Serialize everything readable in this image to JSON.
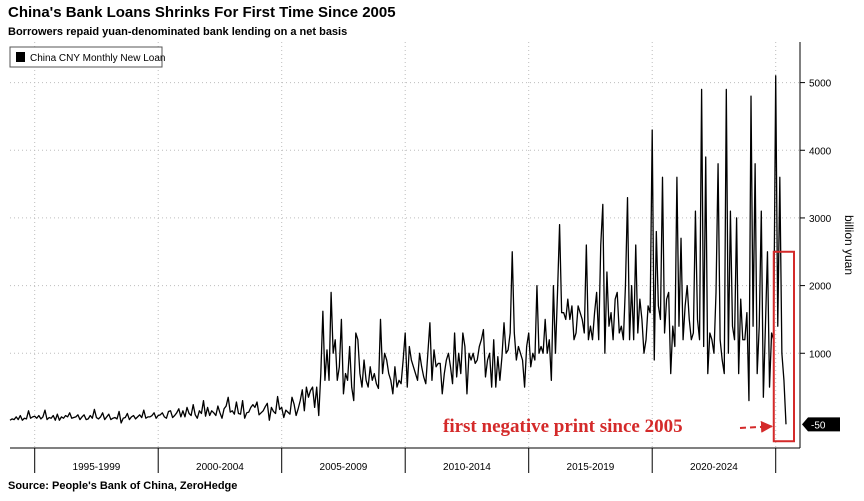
{
  "title": "China's Bank Loans Shrinks For First Time Since 2005",
  "subtitle": "Borrowers repaid yuan-denominated bank lending on a net basis",
  "source": "Source: People's Bank of China, ZeroHedge",
  "colors": {
    "line": "#000000",
    "annotation": "#d42a2a",
    "grid": "#bdbdbd"
  },
  "chart_data": {
    "type": "line",
    "series": [
      {
        "name": "China CNY Monthly New Loan",
        "x_start": "1994-01",
        "frequency": "monthly",
        "values": [
          10,
          30,
          20,
          60,
          20,
          80,
          10,
          40,
          30,
          150,
          40,
          60,
          70,
          40,
          80,
          30,
          60,
          160,
          20,
          50,
          40,
          80,
          10,
          100,
          10,
          60,
          40,
          80,
          60,
          120,
          40,
          50,
          60,
          90,
          20,
          60,
          90,
          20,
          30,
          80,
          40,
          170,
          50,
          30,
          60,
          120,
          20,
          60,
          100,
          20,
          40,
          50,
          30,
          140,
          -30,
          40,
          50,
          110,
          20,
          60,
          80,
          30,
          60,
          90,
          50,
          160,
          40,
          60,
          60,
          80,
          120,
          40,
          80,
          90,
          120,
          60,
          40,
          140,
          150,
          50,
          80,
          120,
          180,
          60,
          150,
          60,
          200,
          110,
          80,
          240,
          90,
          40,
          150,
          110,
          300,
          70,
          200,
          80,
          150,
          120,
          80,
          220,
          120,
          40,
          180,
          220,
          350,
          130,
          150,
          100,
          280,
          110,
          100,
          300,
          40,
          120,
          130,
          200,
          240,
          200,
          280,
          90,
          120,
          150,
          210,
          260,
          10,
          200,
          140,
          110,
          360,
          170,
          200,
          50,
          160,
          130,
          100,
          350,
          250,
          80,
          180,
          300,
          460,
          150,
          500,
          350,
          450,
          500,
          200,
          500,
          80,
          700,
          1620,
          600,
          1050,
          600,
          1900,
          1000,
          1200,
          600,
          800,
          1500,
          400,
          700,
          600,
          1100,
          500,
          300,
          1300,
          1200,
          700,
          500,
          900,
          600,
          500,
          800,
          600,
          700,
          550,
          480,
          1500,
          700,
          1000,
          900,
          700,
          600,
          400,
          800,
          500,
          600,
          550,
          900,
          1300,
          500,
          1100,
          900,
          800,
          700,
          600,
          1000,
          800,
          650,
          550,
          1000,
          1450,
          600,
          1050,
          800,
          850,
          850,
          400,
          700,
          900,
          1000,
          800,
          550,
          1300,
          650,
          1000,
          700,
          1300,
          1100,
          400,
          1000,
          900,
          1000,
          850,
          900,
          1100,
          1200,
          1350,
          650,
          900,
          1000,
          500,
          1200,
          500,
          950,
          600,
          950,
          1450,
          1000,
          1050,
          1300,
          2500,
          1300,
          900,
          1100,
          1000,
          900,
          500,
          1100,
          1300,
          800,
          1000,
          900,
          2000,
          1000,
          1100,
          1000,
          1500,
          1000,
          1200,
          600,
          2000,
          1000,
          1900,
          2900,
          1600,
          1600,
          1500,
          1800,
          1500,
          1700,
          1200,
          1300,
          1700,
          1600,
          1500,
          1300,
          2600,
          1200,
          1400,
          1200,
          1600,
          1900,
          1200,
          2600,
          3200,
          1000,
          2200,
          1400,
          1600,
          1200,
          1800,
          1900,
          1300,
          1400,
          1200,
          2000,
          3300,
          1200,
          2000,
          1200,
          2600,
          1300,
          1800,
          1500,
          1000,
          1200,
          1700,
          1600,
          4300,
          900,
          2800,
          1700,
          1500,
          3600,
          1300,
          1800,
          1900,
          700,
          1400,
          1100,
          3600,
          1400,
          2700,
          1200,
          1700,
          2000,
          1500,
          1200,
          1300,
          3100,
          1500,
          1200,
          4900,
          1100,
          3900,
          700,
          1300,
          1200,
          1000,
          1900,
          3800,
          1200,
          900,
          700,
          4900,
          1000,
          3100,
          1400,
          1200,
          3000,
          700,
          1800,
          1200,
          1200,
          1600,
          300,
          4800,
          1400,
          3800,
          700,
          1400,
          3100,
          350,
          1400,
          2500,
          500,
          1300,
          1200,
          5100,
          1400,
          3600,
          1000,
          600,
          -50
        ]
      }
    ],
    "x_tick_labels": [
      "1995-1999",
      "2000-2004",
      "2005-2009",
      "2010-2014",
      "2015-2019",
      "2020-2024"
    ],
    "ylabel": "billion yuan",
    "yticks": [
      1000,
      2000,
      3000,
      4000,
      5000
    ],
    "ylim": [
      -400,
      5600
    ],
    "last_value_label": "-50",
    "annotation": "first negative print since 2005",
    "legend": "top-left",
    "grid": true
  }
}
